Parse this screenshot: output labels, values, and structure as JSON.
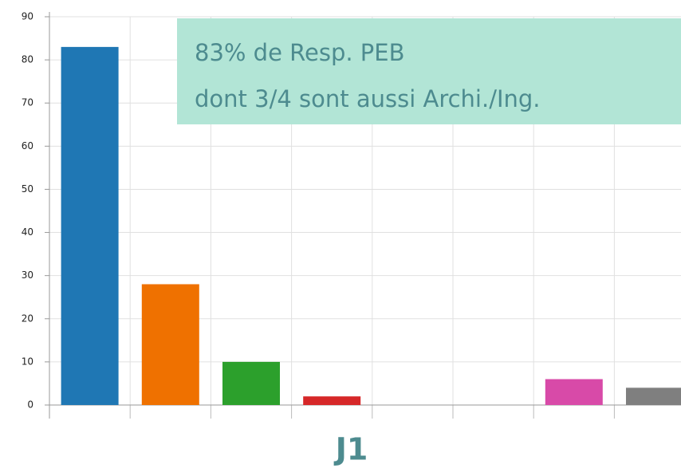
{
  "chart_data": {
    "type": "bar",
    "categories": [
      null,
      null,
      null,
      null,
      null,
      null,
      null,
      null
    ],
    "values": [
      83,
      28,
      10,
      2,
      0,
      0,
      6,
      4
    ],
    "colors": [
      "#1f77b4",
      "#ef7100",
      "#2ca02c",
      "#d62728",
      "#9467bd",
      "#8c564b",
      "#d84aa8",
      "#7f7f7f"
    ],
    "xlabel": "J1",
    "annotation": [
      "83% de Resp. PEB",
      "dont 3/4 sont aussi Archi./Ing."
    ],
    "ylim": [
      0,
      90
    ],
    "yticks": [
      0,
      10,
      20,
      30,
      40,
      50,
      60,
      70,
      80,
      90
    ],
    "grid": true
  }
}
